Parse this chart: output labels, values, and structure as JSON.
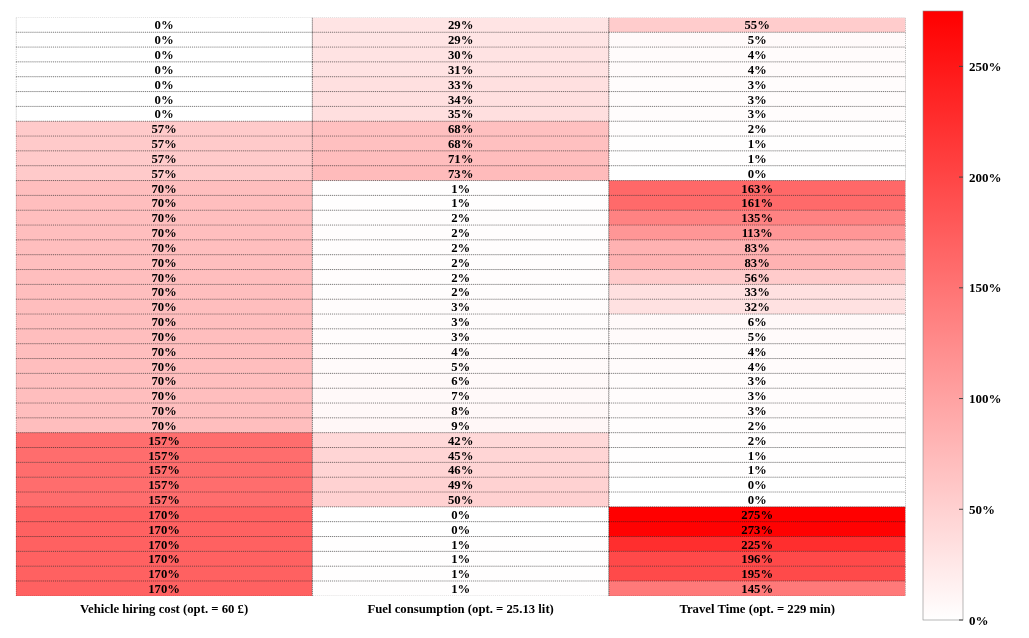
{
  "chart_data": {
    "type": "heatmap",
    "categories": [
      "Vehicle hiring cost (opt. = 60 £)",
      "Fuel consumption (opt. = 25.13 lit)",
      "Travel Time (opt. = 229 min)"
    ],
    "y_categories": [
      null,
      null,
      null,
      null,
      null,
      null,
      null,
      null,
      null,
      null,
      null,
      null,
      null,
      null,
      null,
      null,
      null,
      null,
      null,
      null,
      null,
      null,
      null,
      null,
      null,
      null,
      null,
      null,
      null,
      null,
      null,
      null,
      null,
      null,
      null,
      null,
      null,
      null,
      null
    ],
    "cells": [
      [
        0,
        29,
        55
      ],
      [
        0,
        29,
        5
      ],
      [
        0,
        30,
        4
      ],
      [
        0,
        31,
        4
      ],
      [
        0,
        33,
        3
      ],
      [
        0,
        34,
        3
      ],
      [
        0,
        35,
        3
      ],
      [
        57,
        68,
        2
      ],
      [
        57,
        68,
        1
      ],
      [
        57,
        71,
        1
      ],
      [
        57,
        73,
        0
      ],
      [
        70,
        1,
        163
      ],
      [
        70,
        1,
        161
      ],
      [
        70,
        2,
        135
      ],
      [
        70,
        2,
        113
      ],
      [
        70,
        2,
        83
      ],
      [
        70,
        2,
        83
      ],
      [
        70,
        2,
        56
      ],
      [
        70,
        2,
        33
      ],
      [
        70,
        3,
        32
      ],
      [
        70,
        3,
        6
      ],
      [
        70,
        3,
        5
      ],
      [
        70,
        4,
        4
      ],
      [
        70,
        5,
        4
      ],
      [
        70,
        6,
        3
      ],
      [
        70,
        7,
        3
      ],
      [
        70,
        8,
        3
      ],
      [
        70,
        9,
        2
      ],
      [
        157,
        42,
        2
      ],
      [
        157,
        45,
        1
      ],
      [
        157,
        46,
        1
      ],
      [
        157,
        49,
        0
      ],
      [
        157,
        50,
        0
      ],
      [
        170,
        0,
        275
      ],
      [
        170,
        0,
        273
      ],
      [
        170,
        1,
        225
      ],
      [
        170,
        1,
        196
      ],
      [
        170,
        1,
        195
      ],
      [
        170,
        1,
        145
      ]
    ],
    "cell_labels": [
      [
        "0%",
        "29%",
        "55%"
      ],
      [
        "0%",
        "29%",
        "5%"
      ],
      [
        "0%",
        "30%",
        "4%"
      ],
      [
        "0%",
        "31%",
        "4%"
      ],
      [
        "0%",
        "33%",
        "3%"
      ],
      [
        "0%",
        "34%",
        "3%"
      ],
      [
        "0%",
        "35%",
        "3%"
      ],
      [
        "57%",
        "68%",
        "2%"
      ],
      [
        "57%",
        "68%",
        "1%"
      ],
      [
        "57%",
        "71%",
        "1%"
      ],
      [
        "57%",
        "73%",
        "0%"
      ],
      [
        "70%",
        "1%",
        "163%"
      ],
      [
        "70%",
        "1%",
        "161%"
      ],
      [
        "70%",
        "2%",
        "135%"
      ],
      [
        "70%",
        "2%",
        "113%"
      ],
      [
        "70%",
        "2%",
        "83%"
      ],
      [
        "70%",
        "2%",
        "83%"
      ],
      [
        "70%",
        "2%",
        "56%"
      ],
      [
        "70%",
        "2%",
        "33%"
      ],
      [
        "70%",
        "3%",
        "32%"
      ],
      [
        "70%",
        "3%",
        "6%"
      ],
      [
        "70%",
        "3%",
        "5%"
      ],
      [
        "70%",
        "4%",
        "4%"
      ],
      [
        "70%",
        "5%",
        "4%"
      ],
      [
        "70%",
        "6%",
        "3%"
      ],
      [
        "70%",
        "7%",
        "3%"
      ],
      [
        "70%",
        "8%",
        "3%"
      ],
      [
        "70%",
        "9%",
        "2%"
      ],
      [
        "157%",
        "42%",
        "2%"
      ],
      [
        "157%",
        "45%",
        "1%"
      ],
      [
        "157%",
        "46%",
        "1%"
      ],
      [
        "157%",
        "49%",
        "0%"
      ],
      [
        "157%",
        "50%",
        "0%"
      ],
      [
        "170%",
        "0%",
        "275%"
      ],
      [
        "170%",
        "0%",
        "273%"
      ],
      [
        "170%",
        "1%",
        "225%"
      ],
      [
        "170%",
        "1%",
        "196%"
      ],
      [
        "170%",
        "1%",
        "195%"
      ],
      [
        "170%",
        "1%",
        "145%"
      ]
    ],
    "clim": [
      0,
      275
    ],
    "cticks": [
      {
        "value": 0,
        "label": "0%"
      },
      {
        "value": 50,
        "label": "50%"
      },
      {
        "value": 100,
        "label": "100%"
      },
      {
        "value": 150,
        "label": "150%"
      },
      {
        "value": 200,
        "label": "200%"
      },
      {
        "value": 250,
        "label": "250%"
      }
    ],
    "color": "#ff0000"
  }
}
